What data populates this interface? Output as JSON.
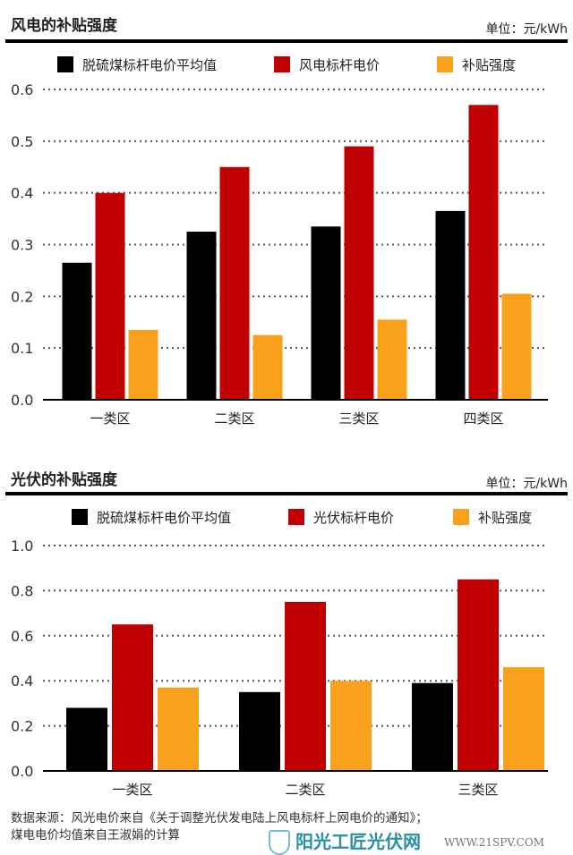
{
  "colors": {
    "coal": "#000000",
    "benchmark": "#c00000",
    "subsidy": "#f9a11b",
    "grid": "#555555"
  },
  "chart_data": [
    {
      "type": "bar",
      "title": "风电的补贴强度",
      "unit": "单位：元/kWh",
      "categories": [
        "一类区",
        "二类区",
        "三类区",
        "四类区"
      ],
      "series": [
        {
          "name": "脱硫煤标杆电价平均值",
          "values": [
            0.265,
            0.325,
            0.335,
            0.365
          ]
        },
        {
          "name": "风电标杆电价",
          "values": [
            0.4,
            0.45,
            0.49,
            0.57
          ]
        },
        {
          "name": "补贴强度",
          "values": [
            0.135,
            0.125,
            0.155,
            0.205
          ]
        }
      ],
      "ylim": [
        0,
        0.6
      ],
      "yticks": [
        "0.0",
        "0.1",
        "0.2",
        "0.3",
        "0.4",
        "0.5",
        "0.6"
      ],
      "grid": true,
      "legend": "top"
    },
    {
      "type": "bar",
      "title": "光伏的补贴强度",
      "unit": "单位：元/kWh",
      "categories": [
        "一类区",
        "二类区",
        "三类区"
      ],
      "series": [
        {
          "name": "脱硫煤标杆电价平均值",
          "values": [
            0.28,
            0.35,
            0.39
          ]
        },
        {
          "name": "光伏标杆电价",
          "values": [
            0.65,
            0.75,
            0.85
          ]
        },
        {
          "name": "补贴强度",
          "values": [
            0.37,
            0.4,
            0.46
          ]
        }
      ],
      "ylim": [
        0,
        1.0
      ],
      "yticks": [
        "0.0",
        "0.2",
        "0.4",
        "0.6",
        "0.8",
        "1.0"
      ],
      "grid": true,
      "legend": "top"
    }
  ],
  "source": {
    "line1": "数据来源：风光电价来自《关于调整光伏发电陆上风电标杆上网电价的通知》；",
    "line2": "煤电电价均值来自王淑娟的计算"
  },
  "watermark": {
    "text": "阳光工匠光伏网",
    "url": "WWW.21SPV.COM"
  }
}
